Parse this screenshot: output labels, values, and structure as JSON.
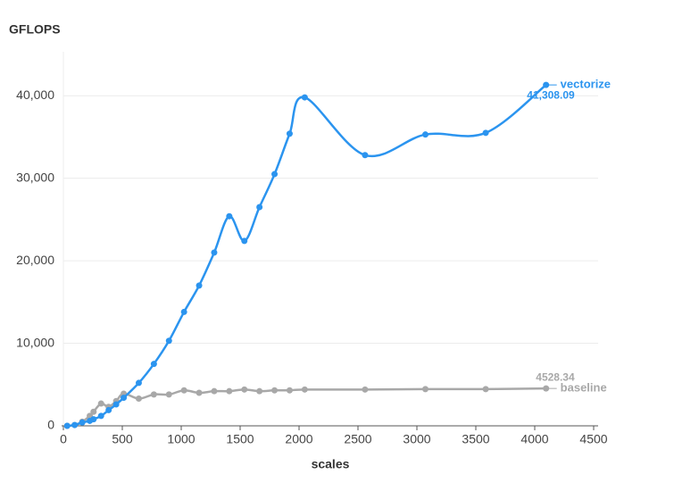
{
  "chart_data": {
    "type": "line",
    "title": "GFLOPS",
    "x_label": "scales",
    "x": [
      32,
      96,
      160,
      224,
      256,
      320,
      384,
      448,
      512,
      640,
      768,
      896,
      1024,
      1152,
      1280,
      1408,
      1536,
      1664,
      1792,
      1920,
      2048,
      2560,
      3072,
      3584,
      4096
    ],
    "series": [
      {
        "name": "vectorize",
        "color": "#2b94ef",
        "values": [
          0,
          100,
          400,
          600,
          800,
          1200,
          1900,
          2600,
          3400,
          5200,
          7500,
          10300,
          13800,
          17000,
          21000,
          25400,
          22400,
          26500,
          30500,
          35400,
          39800,
          32800,
          35300,
          35500,
          41308.09
        ],
        "value_labels": [
          null,
          null,
          null,
          null,
          null,
          null,
          null,
          null,
          null,
          null,
          null,
          null,
          null,
          null,
          null,
          null,
          null,
          null,
          null,
          null,
          null,
          null,
          null,
          null,
          "41,308.09"
        ]
      },
      {
        "name": "baseline",
        "color": "#a8a8a8",
        "values": [
          0,
          100,
          500,
          1200,
          1700,
          2700,
          2300,
          3000,
          3900,
          3300,
          3800,
          3800,
          4300,
          4000,
          4200,
          4200,
          4400,
          4200,
          4300,
          4300,
          4400,
          4400,
          4450,
          4450,
          4528.34
        ]
      }
    ],
    "xlim": [
      0,
      4500
    ],
    "xticks": [
      0,
      500,
      1000,
      1500,
      2000,
      2500,
      3000,
      3500,
      4000,
      4500
    ],
    "ylim": [
      0,
      45000
    ],
    "yticks": [
      0,
      {
        "value": 10000,
        "label": "10,000"
      },
      {
        "value": 20000,
        "label": "20,000"
      },
      {
        "value": 30000,
        "label": "30,000"
      },
      {
        "value": 40000,
        "label": "40,000"
      }
    ],
    "grid": true,
    "smooth": true
  }
}
